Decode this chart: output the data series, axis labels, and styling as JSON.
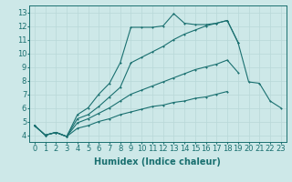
{
  "xlabel": "Humidex (Indice chaleur)",
  "ylabel": "",
  "bg_color": "#cde8e8",
  "line_color": "#1a7070",
  "grid_color": "#b8d8d8",
  "xlim": [
    -0.5,
    23.5
  ],
  "ylim": [
    3.5,
    13.5
  ],
  "xticks": [
    0,
    1,
    2,
    3,
    4,
    5,
    6,
    7,
    8,
    9,
    10,
    11,
    12,
    13,
    14,
    15,
    16,
    17,
    18,
    19,
    20,
    21,
    22,
    23
  ],
  "yticks": [
    4,
    5,
    6,
    7,
    8,
    9,
    10,
    11,
    12,
    13
  ],
  "lines": [
    {
      "x": [
        0,
        1,
        2,
        3,
        4,
        5,
        6,
        7,
        8,
        9,
        10,
        11,
        12,
        13,
        14,
        15,
        16,
        17,
        18,
        19,
        20,
        21,
        22,
        23
      ],
      "y": [
        4.7,
        4.0,
        4.2,
        3.9,
        5.5,
        6.0,
        7.0,
        7.8,
        9.3,
        11.9,
        11.9,
        11.9,
        12.0,
        12.9,
        12.2,
        12.1,
        12.1,
        12.2,
        12.4,
        10.8,
        7.9,
        7.8,
        6.5,
        6.0
      ]
    },
    {
      "x": [
        0,
        1,
        2,
        3,
        4,
        5,
        6,
        7,
        8,
        9,
        10,
        11,
        12,
        13,
        14,
        15,
        16,
        17,
        18,
        19,
        20,
        21,
        22,
        23
      ],
      "y": [
        4.7,
        4.0,
        4.2,
        3.9,
        5.2,
        5.5,
        6.1,
        6.8,
        7.5,
        9.3,
        9.7,
        10.1,
        10.5,
        11.0,
        11.4,
        11.7,
        12.0,
        12.2,
        12.4,
        10.8,
        null,
        null,
        null,
        null
      ]
    },
    {
      "x": [
        0,
        1,
        2,
        3,
        4,
        5,
        6,
        7,
        8,
        9,
        10,
        11,
        12,
        13,
        14,
        15,
        16,
        17,
        18,
        19,
        20,
        21,
        22,
        23
      ],
      "y": [
        4.7,
        4.0,
        4.2,
        3.9,
        4.9,
        5.2,
        5.6,
        6.0,
        6.5,
        7.0,
        7.3,
        7.6,
        7.9,
        8.2,
        8.5,
        8.8,
        9.0,
        9.2,
        9.5,
        8.6,
        null,
        null,
        null,
        null
      ]
    },
    {
      "x": [
        0,
        1,
        2,
        3,
        4,
        5,
        6,
        7,
        8,
        9,
        10,
        11,
        12,
        13,
        14,
        15,
        16,
        17,
        18,
        19,
        20,
        21,
        22,
        23
      ],
      "y": [
        4.7,
        4.0,
        4.2,
        3.9,
        4.5,
        4.7,
        5.0,
        5.2,
        5.5,
        5.7,
        5.9,
        6.1,
        6.2,
        6.4,
        6.5,
        6.7,
        6.8,
        7.0,
        7.2,
        null,
        null,
        null,
        null,
        null
      ]
    }
  ],
  "font_size": 6,
  "marker_size": 1.8,
  "lw": 0.8
}
